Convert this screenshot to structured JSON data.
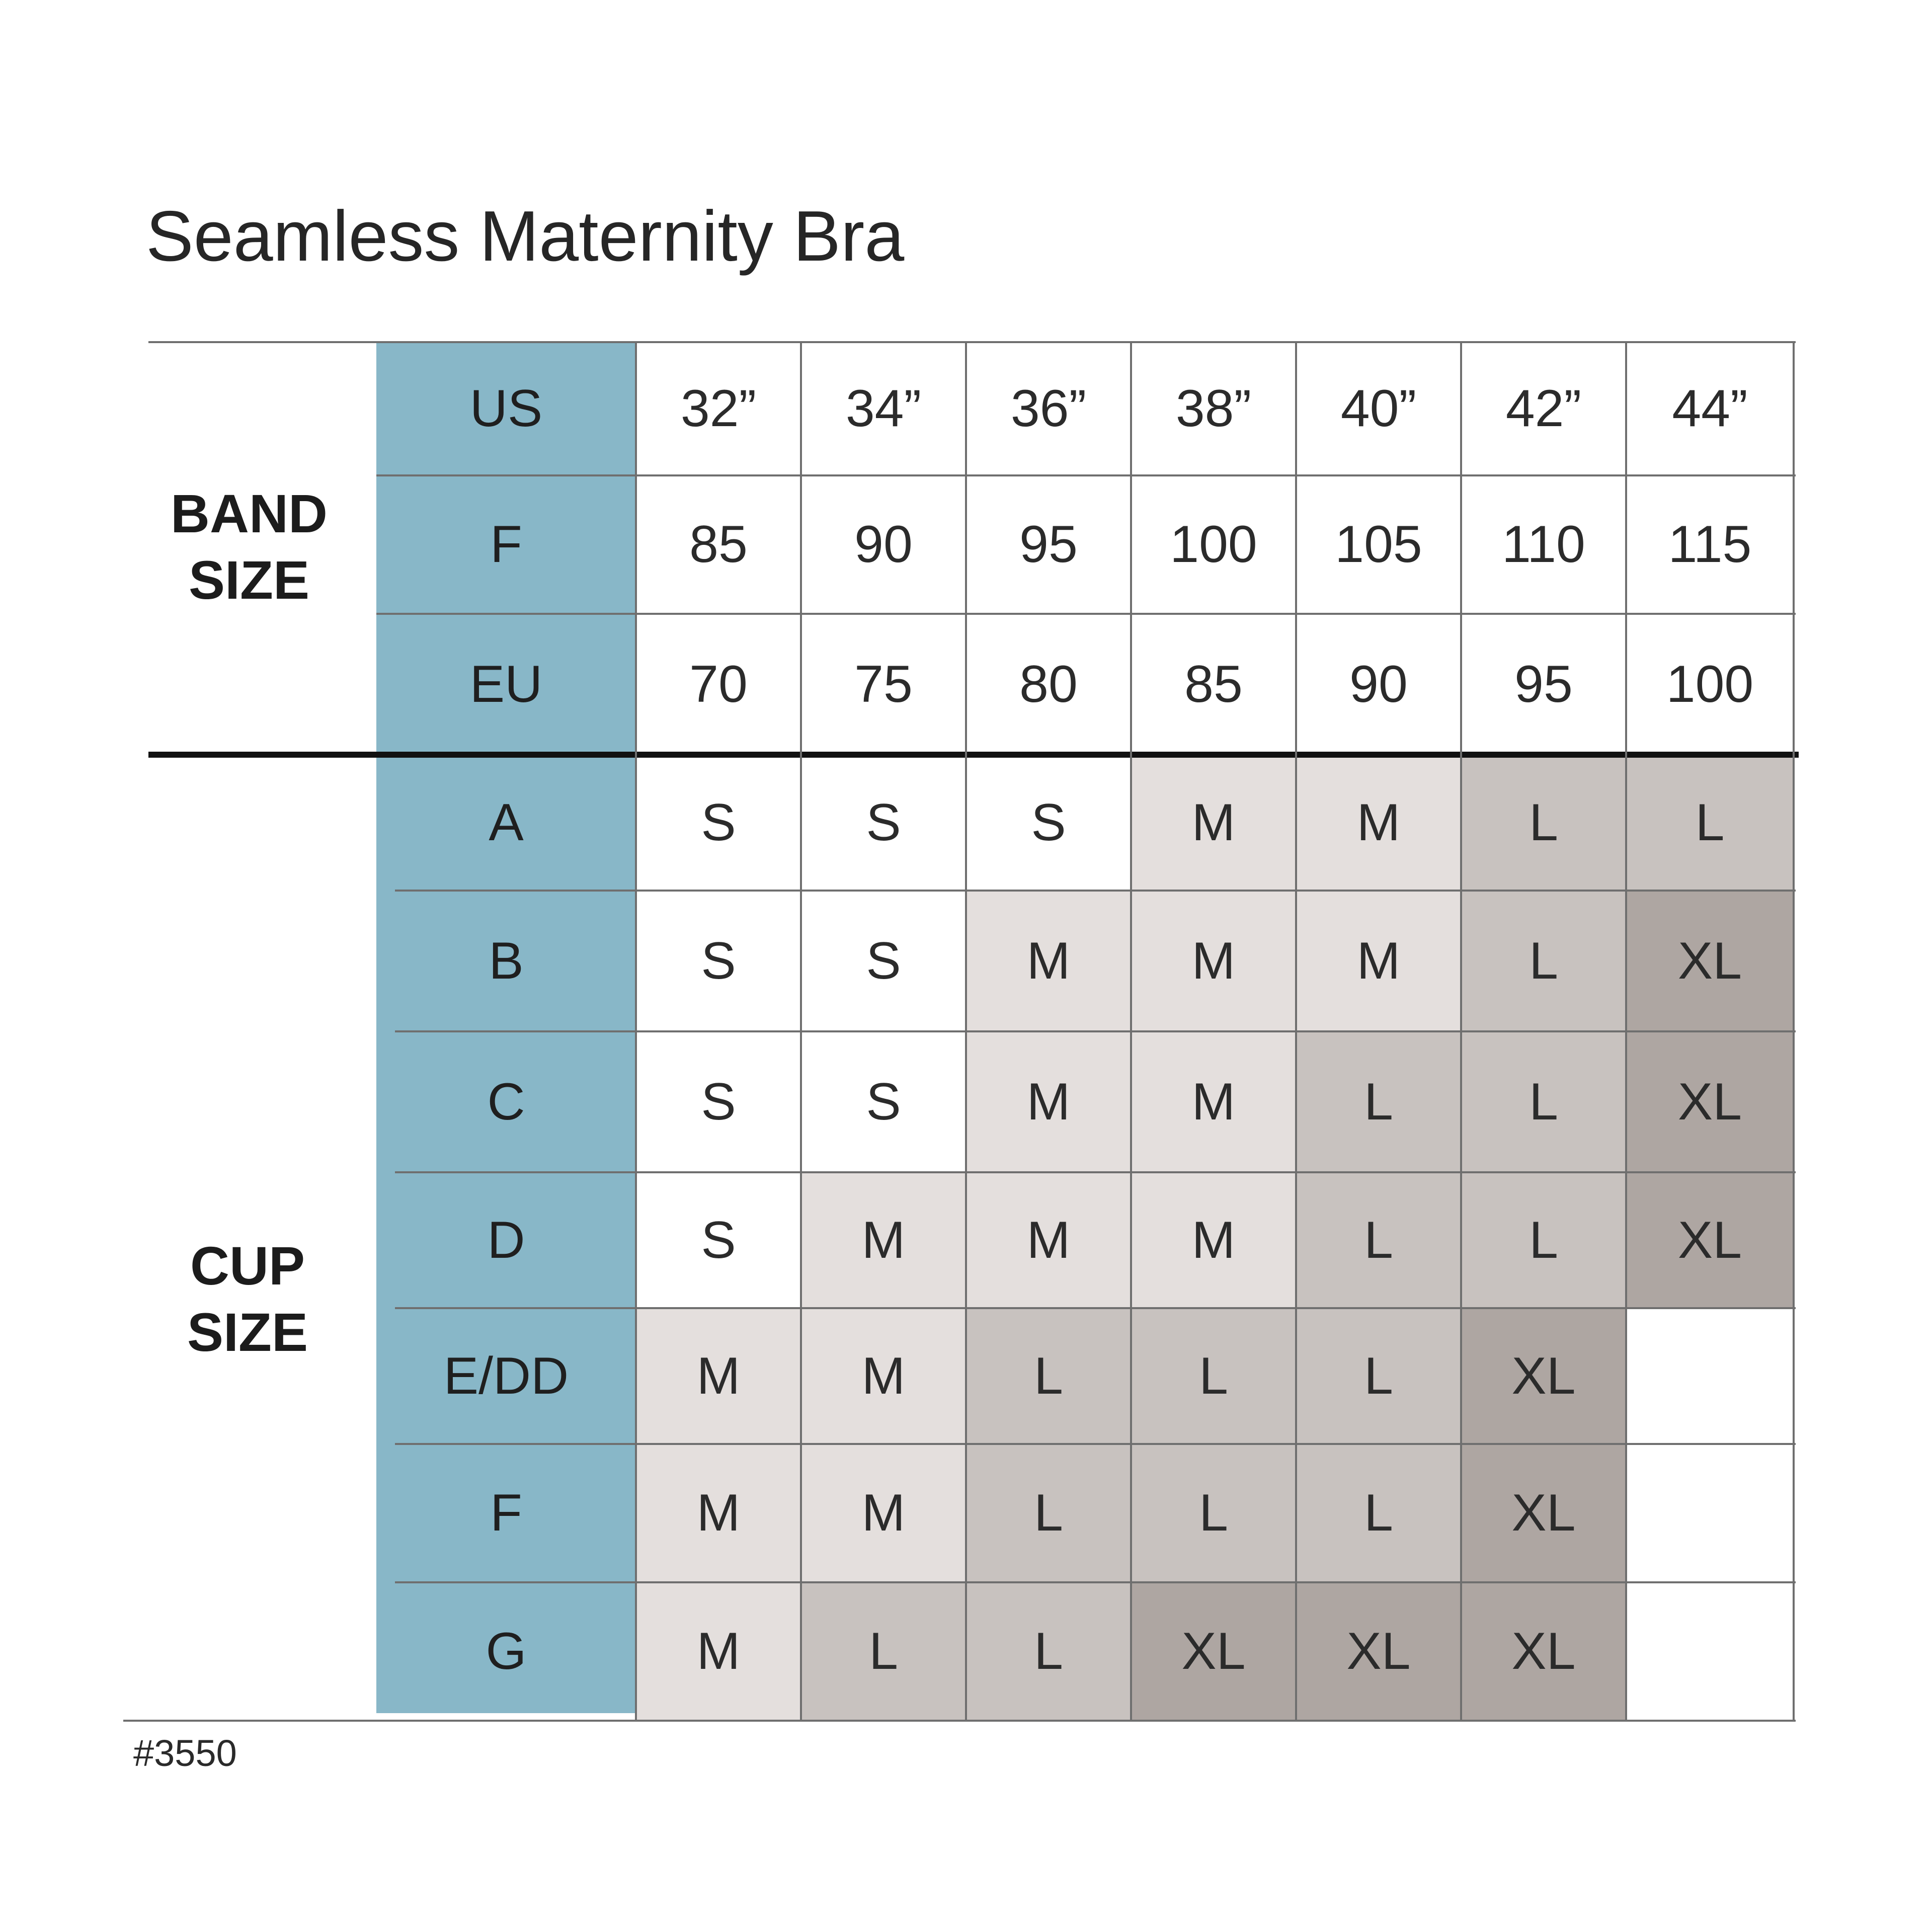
{
  "title": "Seamless Maternity Bra",
  "chart_code": "#3550",
  "band_size_label": [
    "BAND",
    "SIZE"
  ],
  "cup_size_label": [
    "CUP",
    "SIZE"
  ],
  "band_rows": [
    {
      "label": "US",
      "values": [
        "32”",
        "34”",
        "36”",
        "38”",
        "40”",
        "42”",
        "44”"
      ]
    },
    {
      "label": "F",
      "values": [
        "85",
        "90",
        "95",
        "100",
        "105",
        "110",
        "115"
      ]
    },
    {
      "label": "EU",
      "values": [
        "70",
        "75",
        "80",
        "85",
        "90",
        "95",
        "100"
      ]
    }
  ],
  "cup_rows": [
    {
      "label": "A",
      "values": [
        "S",
        "S",
        "S",
        "M",
        "M",
        "L",
        "L"
      ]
    },
    {
      "label": "B",
      "values": [
        "S",
        "S",
        "M",
        "M",
        "M",
        "L",
        "XL"
      ]
    },
    {
      "label": "C",
      "values": [
        "S",
        "S",
        "M",
        "M",
        "L",
        "L",
        "XL"
      ]
    },
    {
      "label": "D",
      "values": [
        "S",
        "M",
        "M",
        "M",
        "L",
        "L",
        "XL"
      ]
    },
    {
      "label": "E/DD",
      "values": [
        "M",
        "M",
        "L",
        "L",
        "L",
        "XL",
        ""
      ]
    },
    {
      "label": "F",
      "values": [
        "M",
        "M",
        "L",
        "L",
        "L",
        "XL",
        ""
      ]
    },
    {
      "label": "G",
      "values": [
        "M",
        "L",
        "L",
        "XL",
        "XL",
        "XL",
        ""
      ]
    }
  ],
  "size_shading": {
    "": "#ffffff",
    "S": "#ffffff",
    "M": "#e4dfdd",
    "L": "#c8c2bf",
    "XL": "#aea6a2"
  },
  "header_column_color": "#88b7c8"
}
